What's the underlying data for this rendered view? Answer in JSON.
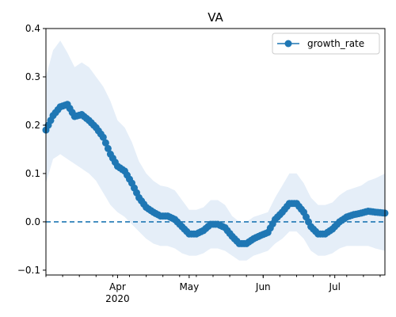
{
  "chart_data": {
    "type": "line",
    "title": "VA",
    "xlabel": "",
    "ylabel": "",
    "ylim": [
      -0.11,
      0.4
    ],
    "xlim": [
      "2020-03-02",
      "2020-07-22"
    ],
    "yticks": [
      -0.1,
      0.0,
      0.1,
      0.2,
      0.3,
      0.4
    ],
    "ytick_labels": [
      "−0.1",
      "0.0",
      "0.1",
      "0.2",
      "0.3",
      "0.4"
    ],
    "xticks_major": [
      {
        "date": "2020-04-01",
        "label": "Apr",
        "sublabel": "2020"
      },
      {
        "date": "2020-05-01",
        "label": "May",
        "sublabel": ""
      },
      {
        "date": "2020-06-01",
        "label": "Jun",
        "sublabel": ""
      },
      {
        "date": "2020-07-01",
        "label": "Jul",
        "sublabel": ""
      }
    ],
    "reference_line": {
      "y": 0.0,
      "style": "dashed"
    },
    "legend": {
      "placement": "top-right",
      "entries": [
        "growth_rate"
      ]
    },
    "colors": {
      "series": "#1f77b4",
      "band": "#dce8f5"
    },
    "series": [
      {
        "name": "growth_rate",
        "x": [
          "2020-03-02",
          "2020-03-05",
          "2020-03-08",
          "2020-03-11",
          "2020-03-14",
          "2020-03-17",
          "2020-03-20",
          "2020-03-23",
          "2020-03-26",
          "2020-03-29",
          "2020-04-01",
          "2020-04-04",
          "2020-04-07",
          "2020-04-10",
          "2020-04-13",
          "2020-04-16",
          "2020-04-19",
          "2020-04-22",
          "2020-04-25",
          "2020-04-28",
          "2020-05-01",
          "2020-05-04",
          "2020-05-07",
          "2020-05-10",
          "2020-05-13",
          "2020-05-16",
          "2020-05-19",
          "2020-05-22",
          "2020-05-25",
          "2020-05-28",
          "2020-05-31",
          "2020-06-03",
          "2020-06-06",
          "2020-06-09",
          "2020-06-12",
          "2020-06-15",
          "2020-06-18",
          "2020-06-21",
          "2020-06-24",
          "2020-06-27",
          "2020-06-30",
          "2020-07-03",
          "2020-07-06",
          "2020-07-09",
          "2020-07-12",
          "2020-07-15",
          "2020-07-18",
          "2020-07-22"
        ],
        "values": [
          0.19,
          0.22,
          0.238,
          0.243,
          0.218,
          0.222,
          0.21,
          0.195,
          0.175,
          0.14,
          0.115,
          0.105,
          0.08,
          0.05,
          0.03,
          0.02,
          0.012,
          0.012,
          0.005,
          -0.01,
          -0.025,
          -0.025,
          -0.018,
          -0.005,
          -0.005,
          -0.012,
          -0.03,
          -0.045,
          -0.045,
          -0.035,
          -0.028,
          -0.022,
          0.005,
          0.02,
          0.038,
          0.038,
          0.02,
          -0.01,
          -0.025,
          -0.025,
          -0.015,
          0.0,
          0.01,
          0.015,
          0.018,
          0.022,
          0.02,
          0.018
        ],
        "lower": [
          0.08,
          0.13,
          0.14,
          0.13,
          0.12,
          0.11,
          0.1,
          0.085,
          0.06,
          0.035,
          0.02,
          0.01,
          -0.005,
          -0.02,
          -0.035,
          -0.045,
          -0.05,
          -0.05,
          -0.055,
          -0.065,
          -0.07,
          -0.07,
          -0.065,
          -0.055,
          -0.055,
          -0.06,
          -0.07,
          -0.08,
          -0.08,
          -0.07,
          -0.065,
          -0.06,
          -0.045,
          -0.035,
          -0.02,
          -0.02,
          -0.035,
          -0.06,
          -0.07,
          -0.07,
          -0.065,
          -0.055,
          -0.05,
          -0.05,
          -0.05,
          -0.05,
          -0.055,
          -0.06
        ],
        "upper": [
          0.3,
          0.355,
          0.375,
          0.35,
          0.32,
          0.33,
          0.32,
          0.3,
          0.28,
          0.25,
          0.21,
          0.195,
          0.165,
          0.125,
          0.1,
          0.085,
          0.075,
          0.072,
          0.065,
          0.045,
          0.025,
          0.025,
          0.03,
          0.045,
          0.045,
          0.035,
          0.012,
          0.0,
          0.0,
          0.01,
          0.015,
          0.02,
          0.05,
          0.075,
          0.1,
          0.1,
          0.08,
          0.05,
          0.035,
          0.035,
          0.04,
          0.055,
          0.065,
          0.07,
          0.075,
          0.085,
          0.09,
          0.1
        ]
      }
    ]
  }
}
